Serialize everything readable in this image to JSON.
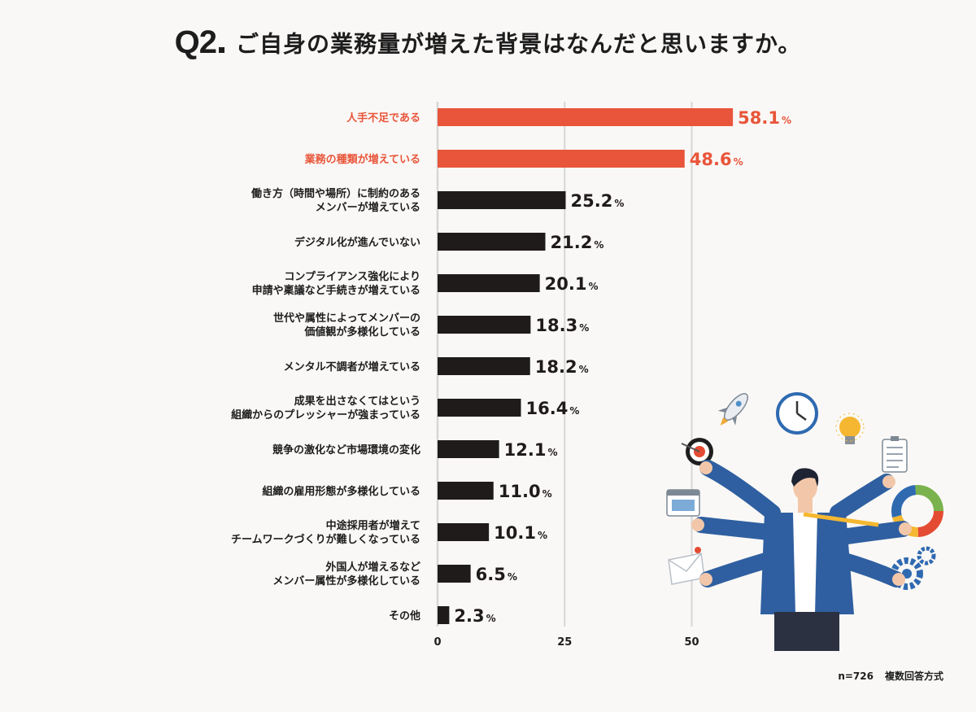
{
  "header": {
    "q_label": "Q2",
    "title": "ご自身の業務量が増えた背景はなんだと思いますか。"
  },
  "footer": {
    "sample": "n=726",
    "method": "複数回答方式"
  },
  "colors": {
    "highlight": "#e8553a",
    "bar": "#1f1b1a",
    "grid": "#d6d6d6",
    "background": "#faf8f6"
  },
  "chart_data": {
    "type": "bar",
    "orientation": "horizontal",
    "categories": [
      [
        "人手不足である"
      ],
      [
        "業務の種類が増えている"
      ],
      [
        "働き方（時間や場所）に制約のある",
        "メンバーが増えている"
      ],
      [
        "デジタル化が進んでいない"
      ],
      [
        "コンプライアンス強化により",
        "申請や稟議など手続きが増えている"
      ],
      [
        "世代や属性によってメンバーの",
        "価値観が多様化している"
      ],
      [
        "メンタル不調者が増えている"
      ],
      [
        "成果を出さなくてはという",
        "組織からのプレッシャーが強まっている"
      ],
      [
        "競争の激化など市場環境の変化"
      ],
      [
        "組織の雇用形態が多様化している"
      ],
      [
        "中途採用者が増えて",
        "チームワークづくりが難しくなっている"
      ],
      [
        "外国人が増えるなど",
        "メンバー属性が多様化している"
      ],
      [
        "その他"
      ]
    ],
    "values": [
      58.1,
      48.6,
      25.2,
      21.2,
      20.1,
      18.3,
      18.2,
      16.4,
      12.1,
      11.0,
      10.1,
      6.5,
      2.3
    ],
    "value_labels": [
      "58.1",
      "48.6",
      "25.2",
      "21.2",
      "20.1",
      "18.3",
      "18.2",
      "16.4",
      "12.1",
      "11.0",
      "10.1",
      "6.5",
      "2.3"
    ],
    "unit": "%",
    "highlighted": [
      0,
      1
    ],
    "xticks": [
      0,
      25,
      50
    ],
    "xlim": [
      0,
      55
    ],
    "grid": true,
    "legend": "none"
  }
}
